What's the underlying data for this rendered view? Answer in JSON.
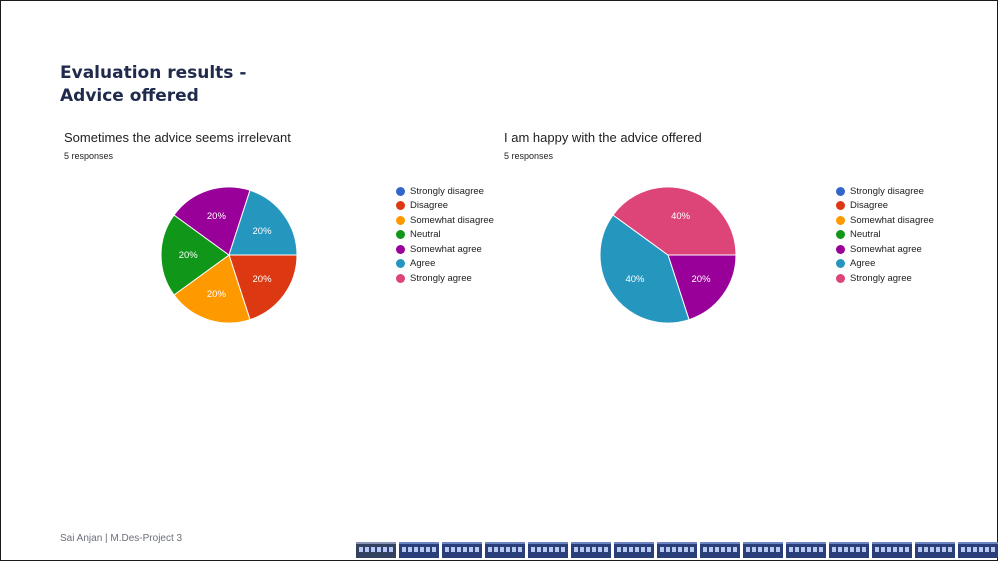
{
  "slide": {
    "title_line1": "Evaluation results -",
    "title_line2": "Advice offered"
  },
  "footer": {
    "text": "Sai Anjan | M.Des-Project 3"
  },
  "train_strip": {
    "icon": "train-illustration",
    "car_count": 15
  },
  "chart_data": [
    {
      "type": "pie",
      "title": "Sometimes the advice seems irrelevant",
      "subtitle": "5 responses",
      "legend_position": "right",
      "categories": [
        "Strongly disagree",
        "Disagree",
        "Somewhat disagree",
        "Neutral",
        "Somewhat agree",
        "Agree",
        "Strongly agree"
      ],
      "colors": [
        "#3366cc",
        "#dc3912",
        "#ff9900",
        "#109618",
        "#990099",
        "#2596be",
        "#dd4477"
      ],
      "values": [
        0,
        1,
        1,
        1,
        1,
        1,
        0
      ],
      "percent_labels": [
        "",
        "20%",
        "20%",
        "20%",
        "20%",
        "20%",
        ""
      ]
    },
    {
      "type": "pie",
      "title": "I am happy with the advice offered",
      "subtitle": "5 responses",
      "legend_position": "right",
      "categories": [
        "Strongly disagree",
        "Disagree",
        "Somewhat disagree",
        "Neutral",
        "Somewhat agree",
        "Agree",
        "Strongly agree"
      ],
      "colors": [
        "#3366cc",
        "#dc3912",
        "#ff9900",
        "#109618",
        "#990099",
        "#2596be",
        "#dd4477"
      ],
      "values": [
        0,
        0,
        0,
        0,
        1,
        2,
        2
      ],
      "percent_labels": [
        "",
        "",
        "",
        "",
        "20%",
        "40%",
        "40%"
      ]
    }
  ]
}
